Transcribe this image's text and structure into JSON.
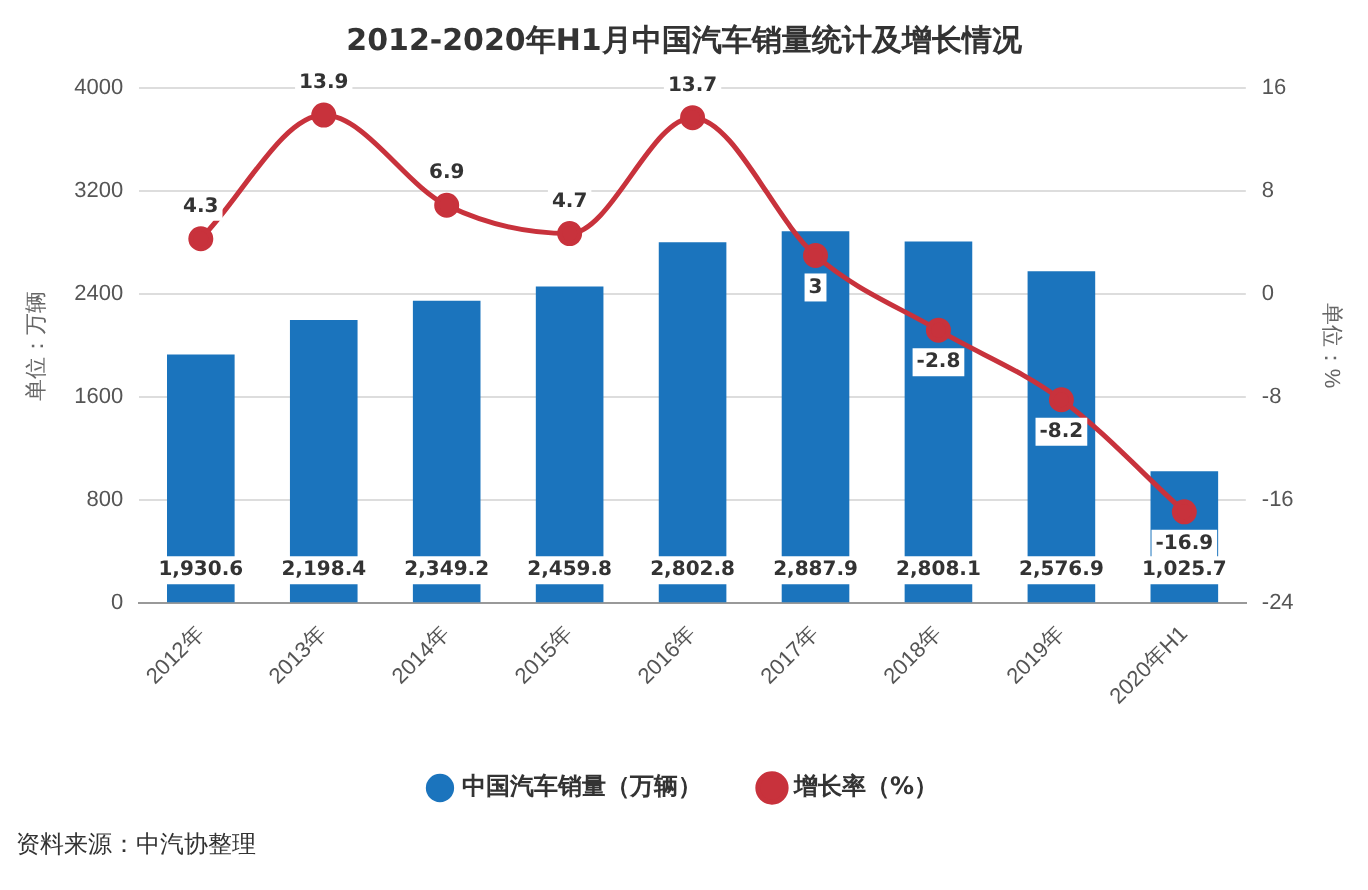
{
  "chart_data": {
    "type": "bar",
    "title": "2012-2020年H1月中国汽车销量统计及增长情况",
    "ylabel": "单位：万辆",
    "y2label": "单位：%",
    "categories": [
      "2012年",
      "2013年",
      "2014年",
      "2015年",
      "2016年",
      "2017年",
      "2018年",
      "2019年",
      "2020年H1"
    ],
    "series": [
      {
        "name": "中国汽车销量（万辆）",
        "color": "#1b74bd",
        "values": [
          1930.6,
          2198.4,
          2349.2,
          2459.8,
          2802.8,
          2887.9,
          2808.1,
          2576.9,
          1025.7
        ],
        "value_labels": [
          "1,930.6",
          "2,198.4",
          "2,349.2",
          "2,459.8",
          "2,802.8",
          "2,887.9",
          "2,808.1",
          "2,576.9",
          "1,025.7"
        ]
      },
      {
        "name": "增长率（%）",
        "type": "line",
        "axis": "y2",
        "color": "#c8323c",
        "values": [
          4.3,
          13.9,
          6.9,
          4.7,
          13.7,
          3,
          -2.8,
          -8.2,
          -16.9
        ],
        "value_labels": [
          "4.3",
          "13.9",
          "6.9",
          "4.7",
          "13.7",
          "3",
          "-2.8",
          "-8.2",
          "-16.9"
        ]
      }
    ],
    "ylim": [
      0,
      4000
    ],
    "yticks": [
      0,
      800,
      1600,
      2400,
      3200,
      4000
    ],
    "y2lim": [
      -24,
      16
    ],
    "y2ticks": [
      -24,
      -16,
      -8,
      0,
      8,
      16
    ],
    "grid": "y",
    "legend": "bottom",
    "marker": "circle",
    "line_style": "solid",
    "annotations": [
      "资料来源：中汽协整理"
    ]
  }
}
